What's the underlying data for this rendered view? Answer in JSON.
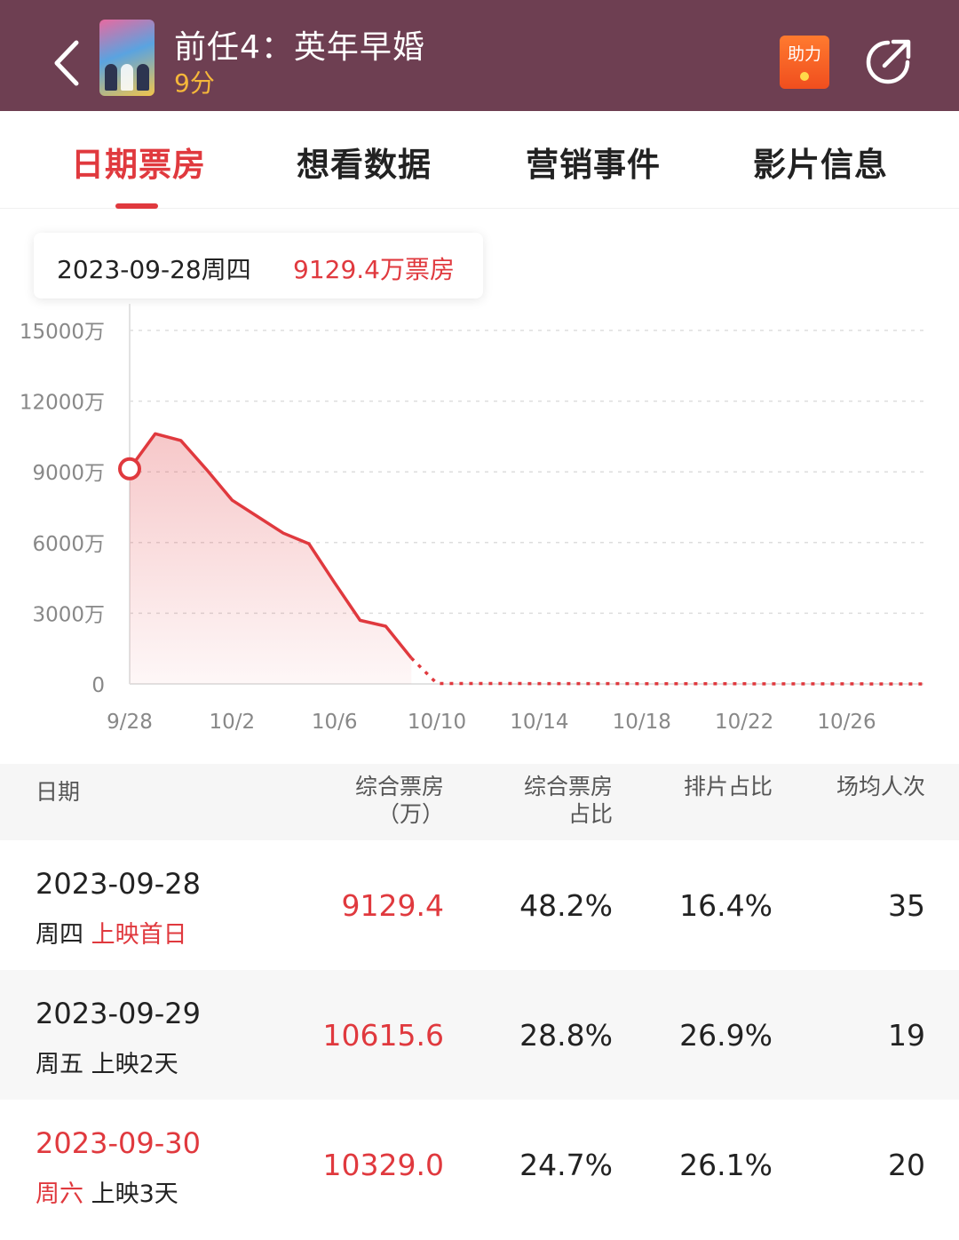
{
  "header": {
    "title": "前任4：英年早婚",
    "score": "9分",
    "help_label": "助力"
  },
  "tabs": [
    {
      "label": "日期票房",
      "active": true
    },
    {
      "label": "想看数据",
      "active": false
    },
    {
      "label": "营销事件",
      "active": false
    },
    {
      "label": "影片信息",
      "active": false
    }
  ],
  "tooltip": {
    "date": "2023-09-28周四",
    "value": "9129.4万票房"
  },
  "chart_data": {
    "type": "line",
    "y_ticks": [
      "15000万",
      "12000万",
      "9000万",
      "6000万",
      "3000万",
      "0"
    ],
    "y_tick_values": [
      15000,
      12000,
      9000,
      6000,
      3000,
      0
    ],
    "x_ticks": [
      "9/28",
      "10/2",
      "10/6",
      "10/10",
      "10/14",
      "10/18",
      "10/22",
      "10/26"
    ],
    "ylim": [
      0,
      15000
    ],
    "unit": "万",
    "series": [
      {
        "values": [
          {
            "date": "9/28",
            "value": 9129.4
          },
          {
            "date": "9/29",
            "value": 10615.6
          },
          {
            "date": "9/30",
            "value": 10329.0
          },
          {
            "date": "10/1",
            "value": 9100
          },
          {
            "date": "10/2",
            "value": 7800
          },
          {
            "date": "10/3",
            "value": 7100
          },
          {
            "date": "10/4",
            "value": 6400
          },
          {
            "date": "10/5",
            "value": 5950
          },
          {
            "date": "10/6",
            "value": 4300
          },
          {
            "date": "10/7",
            "value": 2700
          },
          {
            "date": "10/8",
            "value": 2450
          },
          {
            "date": "10/9",
            "value": 1100
          }
        ],
        "projected": [
          {
            "date": "10/9",
            "value": 1100
          },
          {
            "date": "10/10",
            "value": 20
          },
          {
            "date": "10/29",
            "value": 0
          }
        ]
      }
    ],
    "highlight": {
      "date": "9/28",
      "value": 9129.4
    },
    "grid": true,
    "line_color": "#e0393e"
  },
  "table": {
    "headers": [
      {
        "line1": "日期",
        "line2": ""
      },
      {
        "line1": "综合票房",
        "line2": "（万）"
      },
      {
        "line1": "综合票房",
        "line2": "占比"
      },
      {
        "line1": "排片占比",
        "line2": ""
      },
      {
        "line1": "场均人次",
        "line2": ""
      }
    ],
    "rows": [
      {
        "date": "2023-09-28",
        "weekday": "周四",
        "status": "上映首日",
        "box": "9129.4",
        "share": "48.2%",
        "schedule": "16.4%",
        "avg": "35"
      },
      {
        "date": "2023-09-29",
        "weekday": "周五",
        "status": "上映2天",
        "box": "10615.6",
        "share": "28.8%",
        "schedule": "26.9%",
        "avg": "19"
      },
      {
        "date": "2023-09-30",
        "weekday": "周六",
        "status": "上映3天",
        "box": "10329.0",
        "share": "24.7%",
        "schedule": "26.1%",
        "avg": "20"
      }
    ]
  }
}
